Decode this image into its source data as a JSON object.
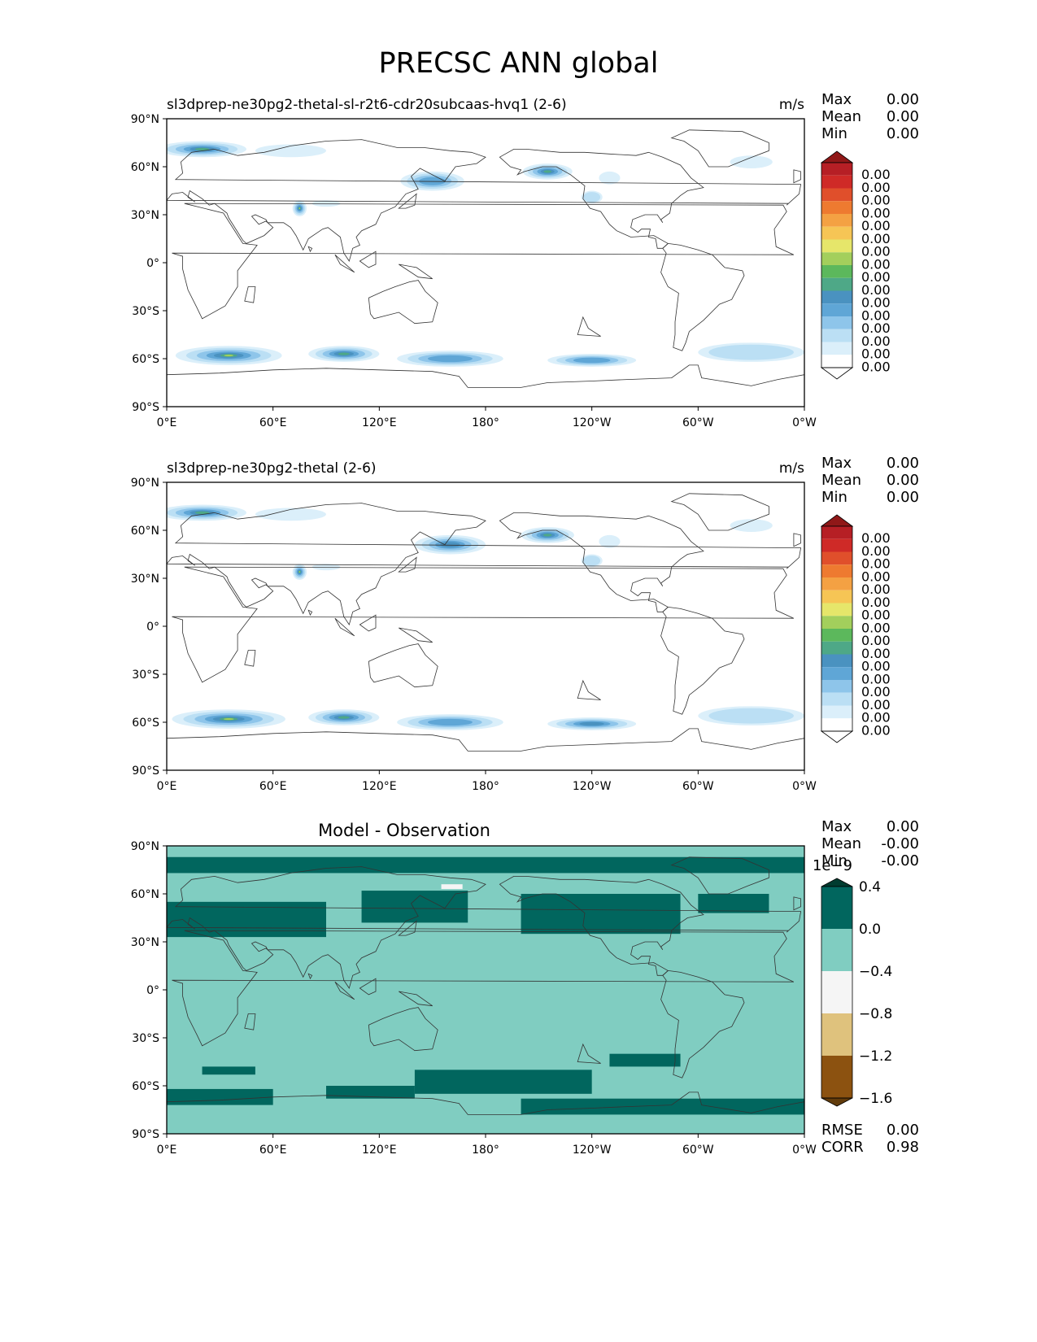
{
  "title": "PRECSC ANN global",
  "colors": {
    "land_outline": "#333333",
    "seq_levels": [
      "#ffffff",
      "#dbeffa",
      "#bbdff4",
      "#8ec5ea",
      "#5fa6d6",
      "#4a92c0",
      "#4ea887",
      "#5cb85c",
      "#a3cf5c",
      "#e6e66a",
      "#f6c555",
      "#f4a143",
      "#ee7a30",
      "#e04f2b",
      "#cf2a27",
      "#b61f25",
      "#901818"
    ],
    "diff_levels": [
      "#613b0b",
      "#8c5210",
      "#dfc27d",
      "#f5f5f5",
      "#80cdc1",
      "#01665e",
      "#003c30"
    ]
  },
  "chart_data": [
    {
      "type": "heatmap",
      "name": "test",
      "title": "sl3dprep-ne30pg2-thetal-sl-r2t6-cdr20subcaas-hvq1 (2-6)",
      "units": "m/s",
      "stats": [
        {
          "label": "Max",
          "value": "0.00"
        },
        {
          "label": "Mean",
          "value": "0.00"
        },
        {
          "label": "Min",
          "value": "0.00"
        }
      ],
      "x_ticks": [
        "0°E",
        "60°E",
        "120°E",
        "180°",
        "120°W",
        "60°W",
        "0°W"
      ],
      "y_ticks": [
        "90°N",
        "60°N",
        "30°N",
        "0°",
        "30°S",
        "60°S",
        "90°S"
      ],
      "xlim": [
        0,
        360
      ],
      "ylim": [
        -90,
        90
      ],
      "colorbar": {
        "labels": [
          "0.00",
          "0.00",
          "0.00",
          "0.00",
          "0.00",
          "0.00",
          "0.00",
          "0.00",
          "0.00",
          "0.00",
          "0.00",
          "0.00",
          "0.00",
          "0.00",
          "0.00",
          "0.00"
        ],
        "extend": "both"
      }
    },
    {
      "type": "heatmap",
      "name": "reference",
      "title": "sl3dprep-ne30pg2-thetal (2-6)",
      "units": "m/s",
      "stats": [
        {
          "label": "Max",
          "value": "0.00"
        },
        {
          "label": "Mean",
          "value": "0.00"
        },
        {
          "label": "Min",
          "value": "0.00"
        }
      ],
      "x_ticks": [
        "0°E",
        "60°E",
        "120°E",
        "180°",
        "120°W",
        "60°W",
        "0°W"
      ],
      "y_ticks": [
        "90°N",
        "60°N",
        "30°N",
        "0°",
        "30°S",
        "60°S",
        "90°S"
      ],
      "xlim": [
        0,
        360
      ],
      "ylim": [
        -90,
        90
      ],
      "colorbar": {
        "labels": [
          "0.00",
          "0.00",
          "0.00",
          "0.00",
          "0.00",
          "0.00",
          "0.00",
          "0.00",
          "0.00",
          "0.00",
          "0.00",
          "0.00",
          "0.00",
          "0.00",
          "0.00",
          "0.00"
        ],
        "extend": "both"
      }
    },
    {
      "type": "heatmap",
      "name": "difference",
      "title": "Model - Observation",
      "units": "",
      "stats": [
        {
          "label": "Max",
          "value": "0.00"
        },
        {
          "label": "Mean",
          "value": "-0.00"
        },
        {
          "label": "Min",
          "value": "-0.00"
        }
      ],
      "x_ticks": [
        "0°E",
        "60°E",
        "120°E",
        "180°",
        "120°W",
        "60°W",
        "0°W"
      ],
      "y_ticks": [
        "90°N",
        "60°N",
        "30°N",
        "0°",
        "30°S",
        "60°S",
        "90°S"
      ],
      "xlim": [
        0,
        360
      ],
      "ylim": [
        -90,
        90
      ],
      "colorbar": {
        "offset_label": "1e−9",
        "labels": [
          "0.4",
          "0.0",
          "−0.4",
          "−0.8",
          "−1.2",
          "−1.6"
        ],
        "levels": [
          0.4,
          0.0,
          -0.4,
          -0.8,
          -1.2,
          -1.6
        ],
        "extend": "both"
      },
      "metrics": [
        {
          "label": "RMSE",
          "value": "0.00"
        },
        {
          "label": "CORR",
          "value": "0.98"
        }
      ]
    }
  ]
}
